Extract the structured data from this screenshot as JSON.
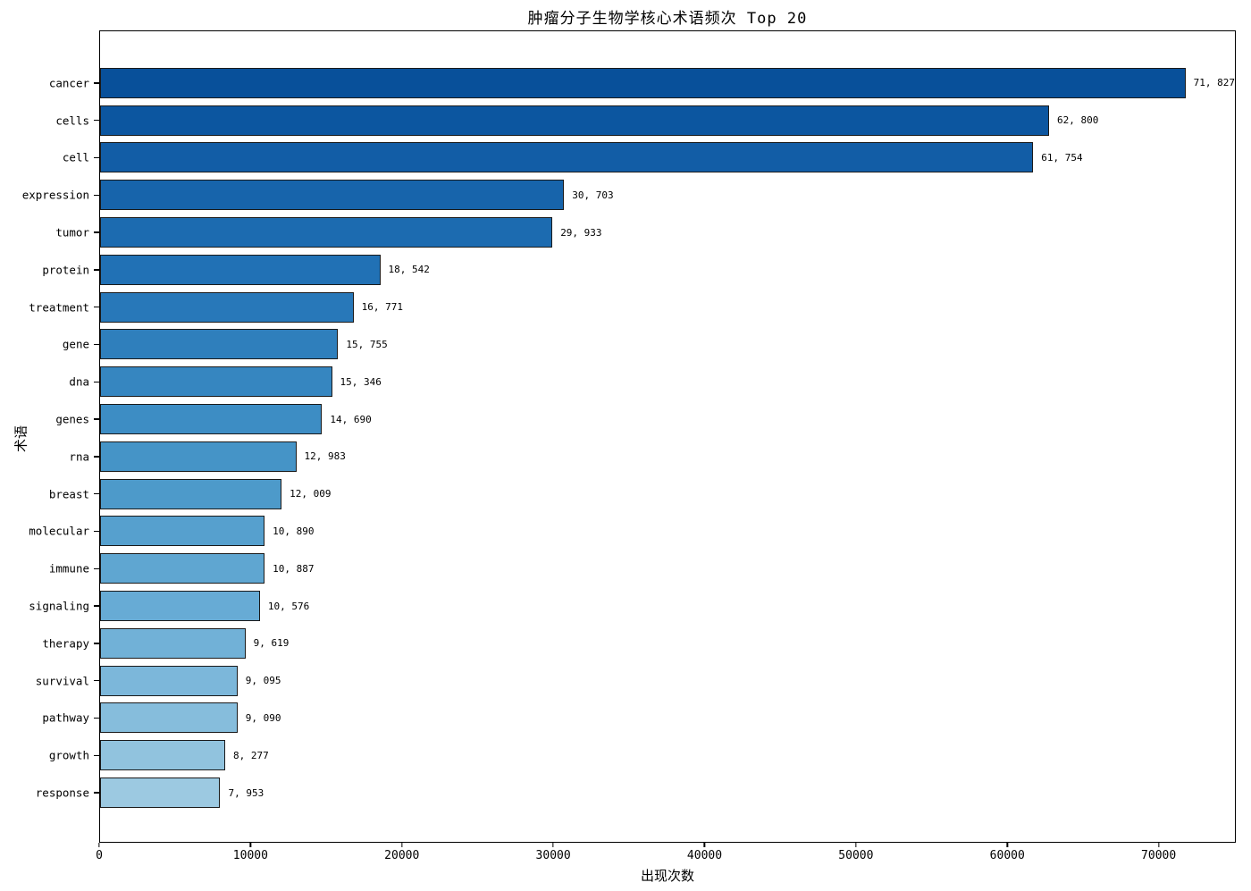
{
  "chart_data": {
    "type": "bar",
    "orientation": "horizontal",
    "title": "肿瘤分子生物学核心术语频次 Top 20",
    "xlabel": "出现次数",
    "ylabel": "术语",
    "categories": [
      "cancer",
      "cells",
      "cell",
      "expression",
      "tumor",
      "protein",
      "treatment",
      "gene",
      "dna",
      "genes",
      "rna",
      "breast",
      "molecular",
      "immune",
      "signaling",
      "therapy",
      "survival",
      "pathway",
      "growth",
      "response"
    ],
    "values": [
      71827,
      62800,
      61754,
      30703,
      29933,
      18542,
      16771,
      15755,
      15346,
      14690,
      12983,
      12009,
      10890,
      10887,
      10576,
      9619,
      9095,
      9090,
      8277,
      7953
    ],
    "value_labels": [
      "71, 827",
      "62, 800",
      "61, 754",
      "30, 703",
      "29, 933",
      "18, 542",
      "16, 771",
      "15, 755",
      "15, 346",
      "14, 690",
      "12, 983",
      "12, 009",
      "10, 890",
      "10, 887",
      "10, 576",
      "9, 619",
      "9, 095",
      "9, 090",
      "8, 277",
      "7, 953"
    ],
    "xlim": [
      0,
      75100
    ],
    "x_ticks": [
      0,
      10000,
      20000,
      30000,
      40000,
      50000,
      60000,
      70000
    ],
    "grid": false,
    "legend": null,
    "bar_colors": [
      "#08509a",
      "#0c56a0",
      "#125da6",
      "#1764ab",
      "#1c6bb0",
      "#2171b5",
      "#2878b9",
      "#2f7fbc",
      "#3686c0",
      "#3d8dc4",
      "#4594c7",
      "#4d9aca",
      "#56a0ce",
      "#5fa6d1",
      "#67abd5",
      "#71b1d7",
      "#7cb7da",
      "#86bddc",
      "#91c3de",
      "#9cc9e1"
    ],
    "bar_edge_color": "#1a1a1a",
    "axis_color": "#000000",
    "background_color": "#ffffff"
  }
}
